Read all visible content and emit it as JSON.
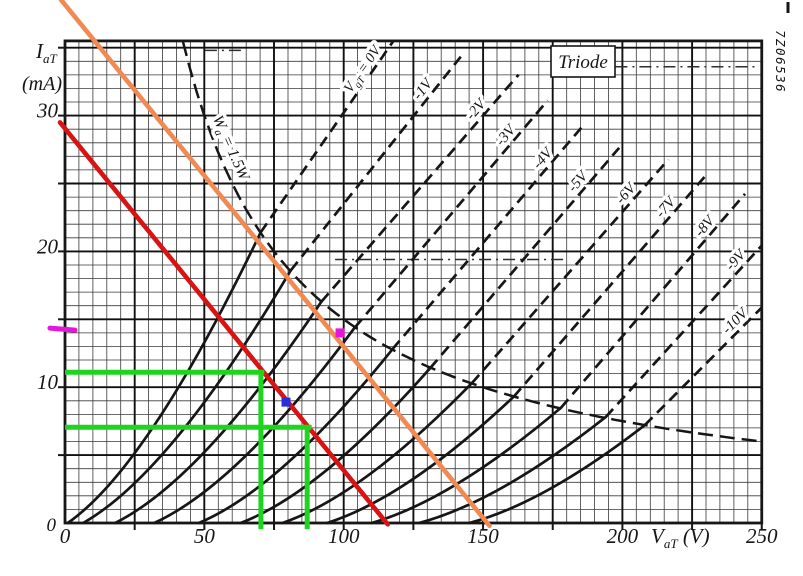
{
  "page": {
    "title": "Triode",
    "code": "7Z06536"
  },
  "chart_data": {
    "type": "line",
    "title": "Triode",
    "xlabel": "VaT (V)",
    "ylabel": "IaT (mA)",
    "xlabel_parts": {
      "main": "V",
      "sub": "aT",
      "rest": " (V)"
    },
    "ylabel_parts": {
      "main": "I",
      "sub": "aT",
      "unit": "(mA)"
    },
    "xlim": [
      0,
      250
    ],
    "ylim": [
      0,
      35.5
    ],
    "x_ticks": [
      0,
      50,
      100,
      150,
      200,
      250
    ],
    "y_ticks": [
      0,
      10,
      20,
      30
    ],
    "grid": {
      "minor_x_V": 5,
      "minor_y_mA": 1,
      "major_x_V": 25,
      "major_y_mA": 5,
      "on": true
    },
    "ink": "#161616",
    "minor_grid_color": "#3a3a3a",
    "major_grid_color": "#101010",
    "anode_curves": [
      {
        "vg_V": 0,
        "label": "VgT = 0V",
        "label_parts": {
          "main": "V",
          "sub": "gT",
          "rest": " = 0V"
        },
        "foot_V": 1,
        "knee": [
          70.2,
          21.4
        ],
        "label_at": [
          109.4,
          33.0
        ]
      },
      {
        "vg_V": -1,
        "label": "-1V",
        "foot_V": 6.5,
        "knee": [
          81,
          18.6
        ],
        "label_at": [
          131.0,
          31.5
        ]
      },
      {
        "vg_V": -2,
        "label": "-2V",
        "foot_V": 18,
        "knee": [
          92,
          16.3
        ],
        "label_at": [
          150.0,
          30.0
        ]
      },
      {
        "vg_V": -3,
        "label": "-3V",
        "foot_V": 32,
        "knee": [
          104,
          14.4
        ],
        "label_at": [
          160.7,
          28.1
        ]
      },
      {
        "vg_V": -4,
        "label": "-4V",
        "foot_V": 48,
        "knee": [
          117.5,
          12.8
        ],
        "label_at": [
          174.0,
          26.4
        ]
      },
      {
        "vg_V": -5,
        "label": "-5V",
        "foot_V": 63,
        "knee": [
          131,
          11.4
        ],
        "label_at": [
          186.6,
          24.7
        ]
      },
      {
        "vg_V": -6,
        "label": "-6V",
        "foot_V": 78,
        "knee": [
          146,
          10.3
        ],
        "label_at": [
          203.8,
          23.8
        ]
      },
      {
        "vg_V": -7,
        "label": "-7V",
        "foot_V": 94,
        "knee": [
          161,
          9.3
        ],
        "label_at": [
          218.1,
          22.8
        ]
      },
      {
        "vg_V": -8,
        "label": "-8V",
        "foot_V": 110,
        "knee": [
          178,
          8.5
        ],
        "label_at": [
          232.1,
          21.4
        ]
      },
      {
        "vg_V": -9,
        "label": "-9V",
        "foot_V": 127,
        "knee": [
          194,
          7.8
        ],
        "label_at": [
          243.2,
          18.9
        ]
      },
      {
        "vg_V": -10,
        "label": "-10V",
        "foot_V": 145,
        "knee": [
          208,
          7.2
        ],
        "label_at": [
          242.9,
          14.4
        ]
      }
    ],
    "power_hyperbola": {
      "label": "Wa = 1.5W",
      "label_parts": {
        "main": "W",
        "sub": "a",
        "rest": " = 1.5W"
      },
      "watts": 1.5,
      "start_V": 42.3,
      "end_V": 250,
      "label_at": [
        58,
        27.5
      ]
    },
    "load_lines": [
      {
        "name": "load-line-red",
        "color": "#d81313",
        "from": [
          -1.8,
          29.5
        ],
        "to": [
          115.8,
          -0.1
        ],
        "width": 4.6
      },
      {
        "name": "load-line-orange",
        "color": "#f08a52",
        "from": [
          -1.5,
          38.55
        ],
        "to": [
          152.3,
          -0.2
        ],
        "width": 4.6
      }
    ],
    "construction_color": "#1fd41f",
    "construction_lines": [
      {
        "name": "green-horizontal-11mA",
        "from": [
          0,
          11.1
        ],
        "to": [
          71.5,
          11.1
        ]
      },
      {
        "name": "green-vertical-70V",
        "from": [
          70.3,
          11.1
        ],
        "to": [
          70.3,
          -0.45
        ]
      },
      {
        "name": "green-horizontal-7mA",
        "from": [
          0,
          7.05
        ],
        "to": [
          88.5,
          7.05
        ]
      },
      {
        "name": "green-vertical-87V",
        "from": [
          86.9,
          7.2
        ],
        "to": [
          86.9,
          -0.45
        ]
      }
    ],
    "markers": [
      {
        "name": "magenta-axis-tick",
        "type": "line",
        "color": "#e316d9",
        "from": [
          -5.4,
          14.35
        ],
        "to": [
          3.6,
          14.2
        ],
        "width": 5
      },
      {
        "name": "magenta-point",
        "type": "dot",
        "color": "#e316d9",
        "at": [
          98.7,
          14.0
        ],
        "size": 9
      },
      {
        "name": "blue-point",
        "type": "dot",
        "color": "#2c2cd9",
        "at": [
          79.3,
          8.9
        ],
        "size": 9
      }
    ],
    "artifact_dashes": [
      {
        "name": "dashdot-top-left",
        "at_mA": 34.8,
        "from_V": 50.2,
        "to_V": 63.8
      },
      {
        "name": "dashdot-top-right",
        "at_mA": 33.6,
        "from_V": 197.5,
        "to_V": 248.6
      },
      {
        "name": "dashdot-mid",
        "at_mA": 19.4,
        "from_V": 96.9,
        "to_V": 179.4
      }
    ]
  }
}
